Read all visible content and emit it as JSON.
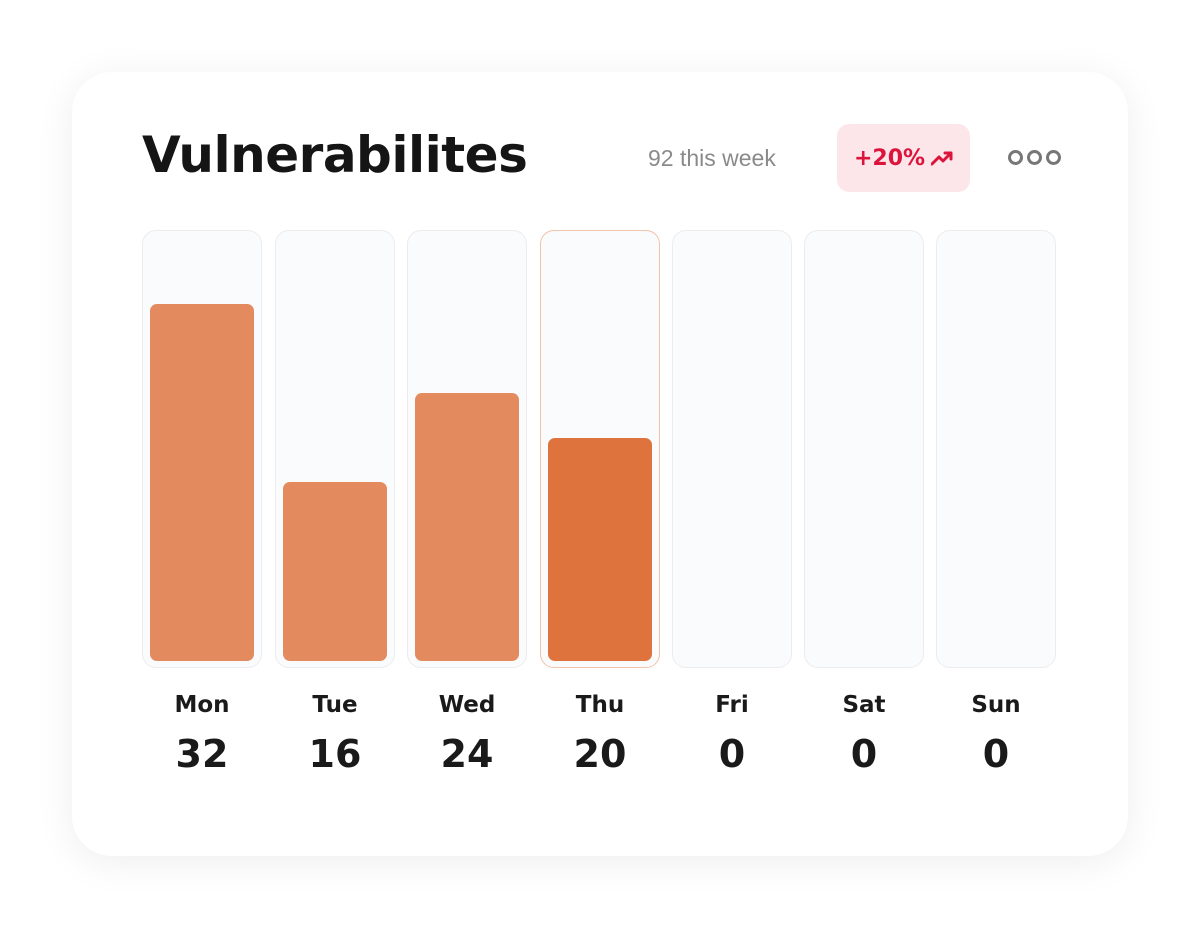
{
  "header": {
    "title": "Vulnerabilites",
    "week_total": "92 this week",
    "change_badge": "+20%",
    "change_icon": "trending-up-icon",
    "more_icon": "more-horizontal-icon"
  },
  "colors": {
    "bar": "#e38b5f",
    "highlight_bar": "#df733d",
    "badge_text": "#dc143c",
    "badge_bg": "#fde6ea"
  },
  "chart_data": {
    "type": "bar",
    "categories": [
      "Mon",
      "Tue",
      "Wed",
      "Thu",
      "Fri",
      "Sat",
      "Sun"
    ],
    "values": [
      32,
      16,
      24,
      20,
      0,
      0,
      0
    ],
    "value_labels": [
      "32",
      "16",
      "24",
      "20",
      "0",
      "0",
      "0"
    ],
    "highlighted": "Thu",
    "title": "Vulnerabilites",
    "ylim": [
      0,
      38
    ],
    "grid": false
  }
}
